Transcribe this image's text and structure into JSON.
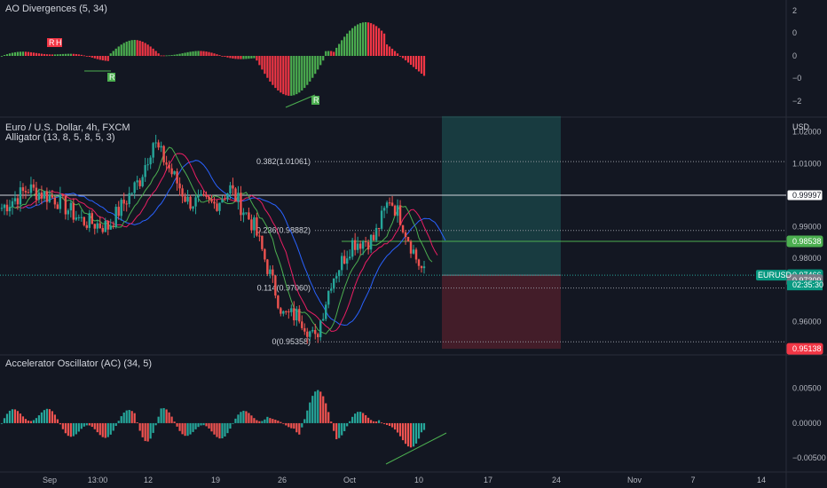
{
  "chart_data": [
    {
      "type": "bar",
      "name": "ao_divergences",
      "title": "AO Divergences (5, 34)",
      "y_ticks": [
        "2",
        "0",
        "0",
        "−0",
        "−2"
      ],
      "divergence_labels": {
        "bear1": "R",
        "bear2": "H",
        "bull1": "R",
        "bull2": "R"
      },
      "colors": {
        "up": "#4caf50",
        "down": "#f23645"
      }
    },
    {
      "type": "candlestick",
      "name": "price",
      "title": "Euro / U.S. Dollar, 4h, FXCM",
      "indicator": "Alligator (13, 8, 5, 8, 5, 3)",
      "currency": "USD",
      "ylim": [
        0.95,
        1.023
      ],
      "y_ticks": [
        "1.02000",
        "1.01000",
        "0.99000",
        "0.98000",
        "0.96000"
      ],
      "x_ticks": [
        "Sep",
        "13:00",
        "12",
        "19",
        "26",
        "Oct",
        "10",
        "17",
        "24",
        "Nov",
        "7",
        "14"
      ],
      "fib_levels": [
        {
          "label": "0.382(1.01061)",
          "value": 1.01061
        },
        {
          "label": "0.236(0.98882)",
          "value": 0.98882
        },
        {
          "label": "0.114(0.97060)",
          "value": 0.9706
        },
        {
          "label": "0(0.95358)",
          "value": 0.95358
        }
      ],
      "price_labels": [
        {
          "text": "0.99997",
          "value": 0.99997,
          "style": "white"
        },
        {
          "text": "0.98538",
          "value": 0.98538,
          "style": "green"
        },
        {
          "text": "0.97466",
          "value": 0.97466,
          "style": "teal"
        },
        {
          "text": "0.97309",
          "value": 0.97309,
          "style": "gray"
        },
        {
          "text": "0.95138",
          "value": 0.95138,
          "style": "red"
        }
      ],
      "symbol_label": "EURUSD",
      "countdown": "02:35:30",
      "position": {
        "entry": 0.97466,
        "target": 1.025,
        "stop": 0.95138
      },
      "colors": {
        "up": "#26a69a",
        "down": "#ef5350",
        "jaw": "#2962ff",
        "teeth": "#e91e63",
        "lips": "#4caf50"
      }
    },
    {
      "type": "bar",
      "name": "accelerator_oscillator",
      "title": "Accelerator Oscillator (AC) (34, 5)",
      "y_ticks": [
        "0.00500",
        "0.00000",
        "−0.00500"
      ],
      "ylim": [
        -0.0065,
        0.0075
      ],
      "colors": {
        "up": "#26a69a",
        "down": "#ef5350"
      }
    }
  ]
}
